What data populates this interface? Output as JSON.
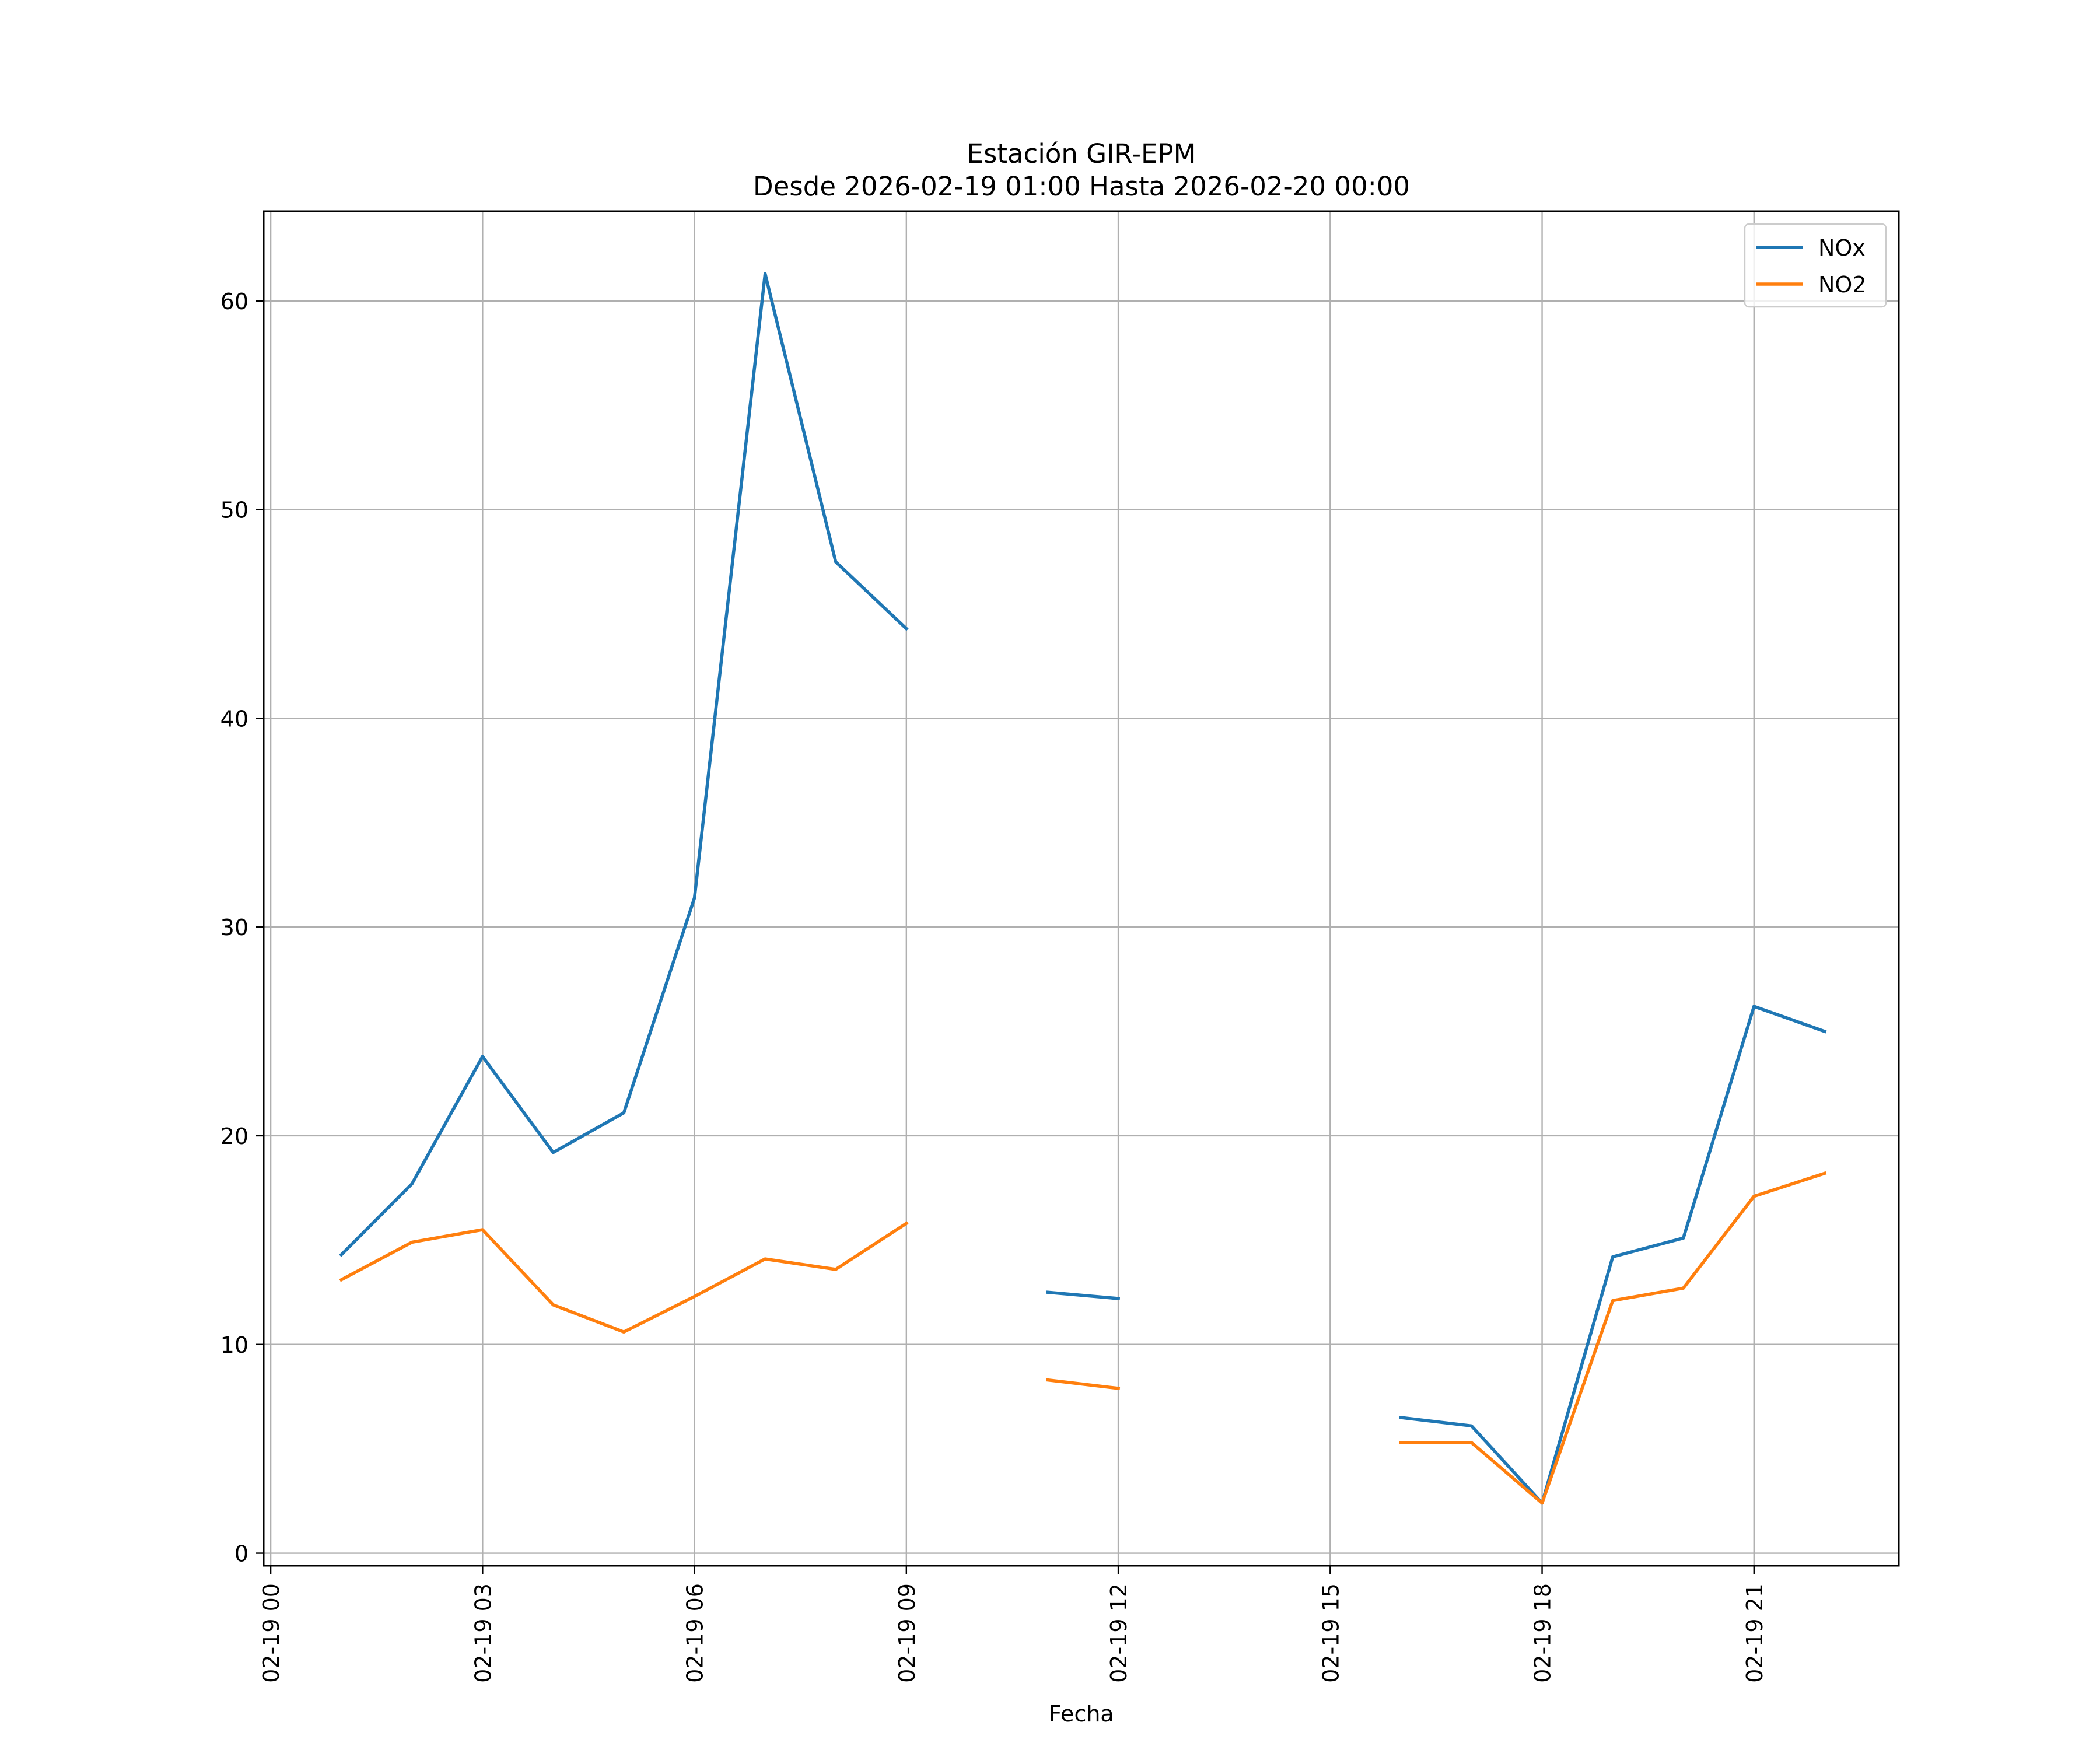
{
  "chart_data": {
    "type": "line",
    "title": "Estación GIR-EPM",
    "subtitle": "Desde 2026-02-19 01:00 Hasta 2026-02-20 00:00",
    "xlabel": "Fecha",
    "ylabel": "",
    "x_unit": "hour of 2026-02-19",
    "xlim": [
      -0.1,
      23.05
    ],
    "ylim": [
      -0.6,
      64.3
    ],
    "x_ticks": [
      {
        "value": 0,
        "label": "02-19 00"
      },
      {
        "value": 3,
        "label": "02-19 03"
      },
      {
        "value": 6,
        "label": "02-19 06"
      },
      {
        "value": 9,
        "label": "02-19 09"
      },
      {
        "value": 12,
        "label": "02-19 12"
      },
      {
        "value": 15,
        "label": "02-19 15"
      },
      {
        "value": 18,
        "label": "02-19 18"
      },
      {
        "value": 21,
        "label": "02-19 21"
      }
    ],
    "y_ticks": [
      {
        "value": 0,
        "label": "0"
      },
      {
        "value": 10,
        "label": "10"
      },
      {
        "value": 20,
        "label": "20"
      },
      {
        "value": 30,
        "label": "30"
      },
      {
        "value": 40,
        "label": "40"
      },
      {
        "value": 50,
        "label": "50"
      },
      {
        "value": 60,
        "label": "60"
      }
    ],
    "grid": true,
    "legend_position": "top-right",
    "x": [
      1,
      2,
      3,
      4,
      5,
      6,
      7,
      8,
      9,
      10,
      11,
      12,
      13,
      14,
      15,
      16,
      17,
      18,
      19,
      20,
      21,
      22
    ],
    "series": [
      {
        "name": "NOx",
        "color": "#1f77b4",
        "values": [
          14.3,
          17.7,
          23.8,
          19.2,
          21.1,
          31.4,
          61.3,
          47.5,
          44.3,
          null,
          12.5,
          12.2,
          null,
          null,
          null,
          6.5,
          6.1,
          2.4,
          14.2,
          15.1,
          26.2,
          25.0
        ]
      },
      {
        "name": "NO2",
        "color": "#ff7f0e",
        "values": [
          13.1,
          14.9,
          15.5,
          11.9,
          10.6,
          12.3,
          14.1,
          13.6,
          15.8,
          null,
          8.3,
          7.9,
          null,
          null,
          null,
          5.3,
          5.3,
          2.4,
          12.1,
          12.7,
          17.1,
          18.2
        ]
      }
    ]
  }
}
